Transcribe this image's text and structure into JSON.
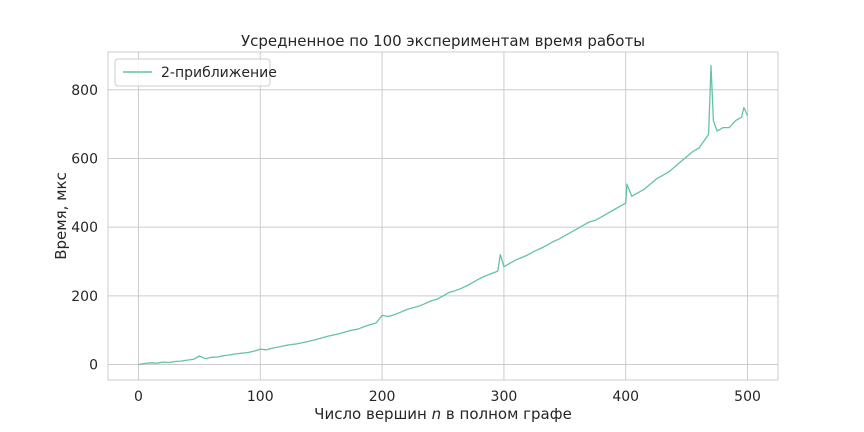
{
  "chart_data": {
    "type": "line",
    "title": "Усредненное по 100 экспериментам время работы",
    "xlabel_prefix": "Число вершин ",
    "xlabel_var": "n",
    "xlabel_suffix": " в полном графе",
    "ylabel": "Время, мкс",
    "xlim": [
      -25,
      525
    ],
    "ylim": [
      -45,
      910
    ],
    "xticks": [
      0,
      100,
      200,
      300,
      400,
      500
    ],
    "yticks": [
      0,
      200,
      400,
      600,
      800
    ],
    "grid": true,
    "legend_position": "top-left",
    "series": [
      {
        "name": "2-приближение",
        "color": "#66c2a5",
        "x": [
          0,
          5,
          10,
          15,
          20,
          25,
          30,
          35,
          40,
          45,
          50,
          55,
          60,
          65,
          70,
          75,
          80,
          85,
          90,
          95,
          100,
          105,
          110,
          115,
          120,
          125,
          130,
          135,
          140,
          145,
          150,
          155,
          160,
          165,
          170,
          175,
          180,
          185,
          190,
          195,
          200,
          205,
          210,
          215,
          220,
          225,
          230,
          235,
          240,
          245,
          250,
          255,
          260,
          265,
          270,
          275,
          280,
          285,
          290,
          295,
          297,
          300,
          305,
          310,
          315,
          320,
          325,
          330,
          335,
          340,
          345,
          350,
          355,
          360,
          365,
          370,
          375,
          380,
          385,
          390,
          395,
          400,
          401,
          405,
          410,
          415,
          420,
          425,
          430,
          435,
          440,
          445,
          450,
          455,
          460,
          465,
          468,
          470,
          472,
          475,
          480,
          485,
          490,
          495,
          497,
          500
        ],
        "y": [
          0,
          3,
          5,
          4,
          7,
          6,
          9,
          10,
          13,
          15,
          25,
          17,
          21,
          22,
          26,
          28,
          31,
          33,
          35,
          39,
          45,
          43,
          48,
          51,
          55,
          58,
          60,
          64,
          68,
          72,
          77,
          82,
          86,
          90,
          95,
          100,
          103,
          110,
          116,
          121,
          143,
          140,
          145,
          152,
          160,
          165,
          170,
          177,
          185,
          190,
          200,
          210,
          215,
          222,
          230,
          240,
          250,
          258,
          265,
          272,
          320,
          285,
          295,
          305,
          312,
          320,
          330,
          338,
          347,
          357,
          365,
          375,
          385,
          395,
          405,
          415,
          420,
          430,
          440,
          450,
          460,
          470,
          525,
          490,
          500,
          510,
          525,
          540,
          550,
          560,
          575,
          590,
          605,
          620,
          630,
          655,
          670,
          870,
          710,
          680,
          690,
          690,
          710,
          720,
          748,
          725
        ]
      }
    ]
  }
}
